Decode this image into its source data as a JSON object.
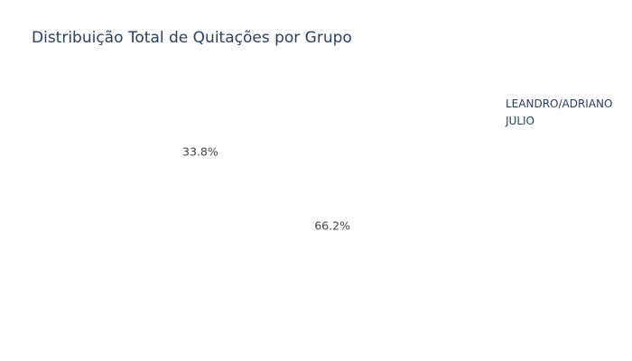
{
  "chart_data": {
    "type": "pie",
    "title": "Distribuição Total de Quitações por Grupo",
    "labels": [
      "LEANDRO/ADRIANO",
      "JULIO"
    ],
    "values": [
      66.2,
      33.8
    ],
    "value_labels": [
      "66.2%",
      "33.8%"
    ],
    "legend_position": "top-right",
    "colors": [
      "#ffffff",
      "#ffffff"
    ]
  }
}
